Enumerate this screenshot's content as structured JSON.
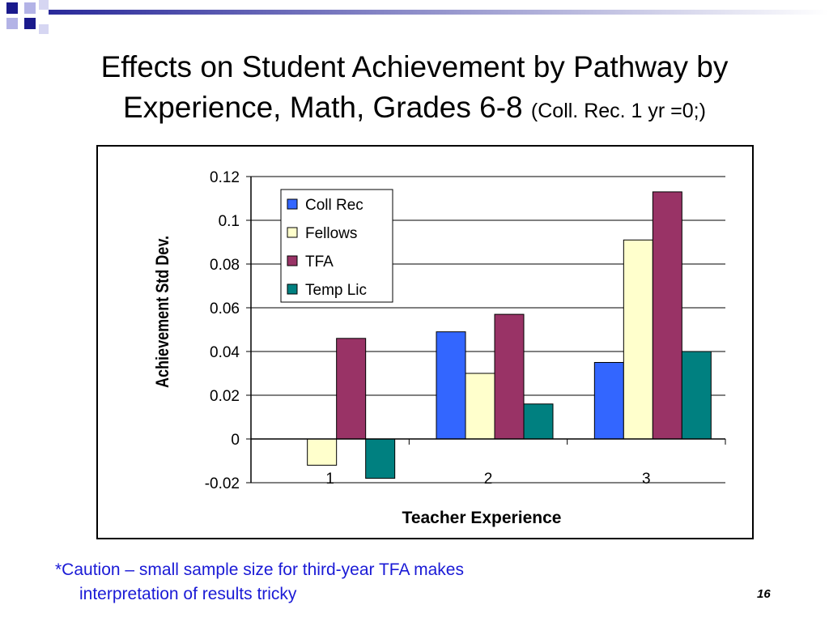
{
  "slide": {
    "title_main": "Effects on Student Achievement by Pathway by Experience, Math, Grades 6-8",
    "title_line1": "Effects on Student Achievement by Pathway by",
    "title_line2": "Experience, Math, Grades 6-8",
    "title_note": "(Coll. Rec. 1 yr =0;)",
    "caution_line1": "*Caution – small sample size for third-year TFA makes",
    "caution_line2": "interpretation of results tricky",
    "page_number": "16"
  },
  "colors": {
    "decor_blue": "#1a1a8c",
    "decor_lavender": "#b3b3e6",
    "note_text": "#1a1ad6"
  },
  "chart_data": {
    "type": "bar",
    "categories": [
      "1",
      "2",
      "3"
    ],
    "series": [
      {
        "name": "Coll Rec",
        "values": [
          0,
          0.049,
          0.035
        ],
        "color": "#3366ff"
      },
      {
        "name": "Fellows",
        "values": [
          -0.012,
          0.03,
          0.091
        ],
        "color": "#ffffcc"
      },
      {
        "name": "TFA",
        "values": [
          0.046,
          0.057,
          0.113
        ],
        "color": "#993366"
      },
      {
        "name": "Temp Lic",
        "values": [
          -0.018,
          0.016,
          0.04
        ],
        "color": "#008080"
      }
    ],
    "yticks": [
      "0.12",
      "0.1",
      "0.08",
      "0.06",
      "0.04",
      "0.02",
      "0",
      "-0.02"
    ],
    "ylim": [
      -0.02,
      0.12
    ],
    "xlabel": "Teacher Experience",
    "ylabel": "Achievement Std Dev.",
    "grid": true,
    "legend_position": "top-left"
  }
}
